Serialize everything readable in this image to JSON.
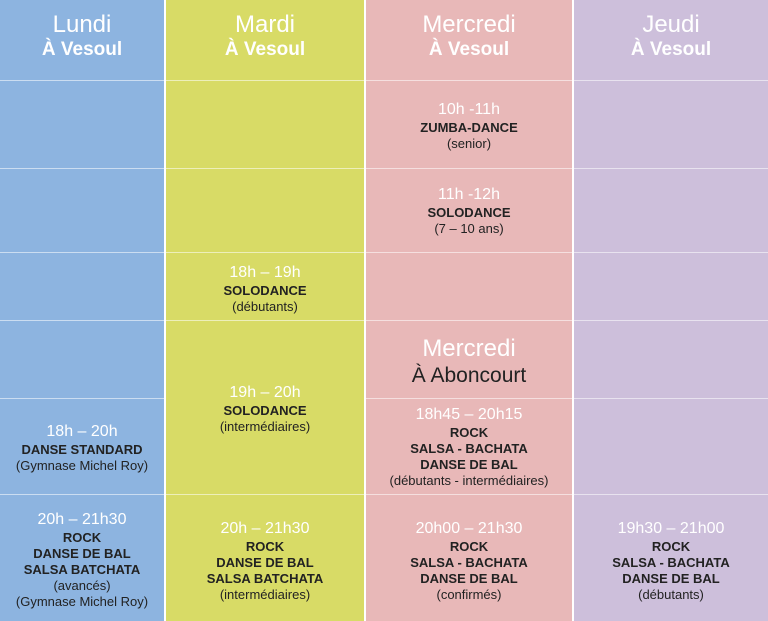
{
  "columns": {
    "lundi": {
      "day": "Lundi",
      "place": "À Vesoul",
      "slot1": {
        "time": "18h – 20h",
        "title": "DANSE STANDARD",
        "note": "(Gymnase Michel Roy)"
      },
      "slot2": {
        "time": "20h – 21h30",
        "title1": "ROCK",
        "title2": "DANSE DE BAL",
        "title3": "SALSA BATCHATA",
        "note1": "(avancés)",
        "note2": "(Gymnase Michel Roy)"
      }
    },
    "mardi": {
      "day": "Mardi",
      "place": "À Vesoul",
      "slot1": {
        "time": "18h – 19h",
        "title": "SOLODANCE",
        "note": "(débutants)"
      },
      "slot2": {
        "time": "19h – 20h",
        "title": "SOLODANCE",
        "note": "(intermédiaires)"
      },
      "slot3": {
        "time": "20h – 21h30",
        "title1": "ROCK",
        "title2": "DANSE DE BAL",
        "title3": "SALSA BATCHATA",
        "note": "(intermédiaires)"
      }
    },
    "mercredi": {
      "day": "Mercredi",
      "place": "À Vesoul",
      "slot1": {
        "time": "10h -11h",
        "title": "ZUMBA-DANCE",
        "note": "(senior)"
      },
      "slot2": {
        "time": "11h -12h",
        "title": "SOLODANCE",
        "note": "(7 – 10 ans)"
      },
      "sub": {
        "day": "Mercredi",
        "place": "À Aboncourt"
      },
      "slot3": {
        "time": "18h45 – 20h15",
        "title1": "ROCK",
        "title2": "SALSA - BACHATA",
        "title3": "DANSE DE BAL",
        "note": "(débutants - intermédiaires)"
      },
      "slot4": {
        "time": "20h00 – 21h30",
        "title1": "ROCK",
        "title2": "SALSA - BACHATA",
        "title3": "DANSE DE BAL",
        "note": "(confirmés)"
      }
    },
    "jeudi": {
      "day": "Jeudi",
      "place": "À Vesoul",
      "slot1": {
        "time": "19h30 – 21h00",
        "title1": "ROCK",
        "title2": "SALSA - BACHATA",
        "title3": "DANSE DE BAL",
        "note": "(débutants)"
      }
    }
  },
  "colors": {
    "lundi": "#8db4e0",
    "mardi": "#d8db66",
    "mercredi": "#e8b8b8",
    "jeudi": "#cdbfdb"
  }
}
